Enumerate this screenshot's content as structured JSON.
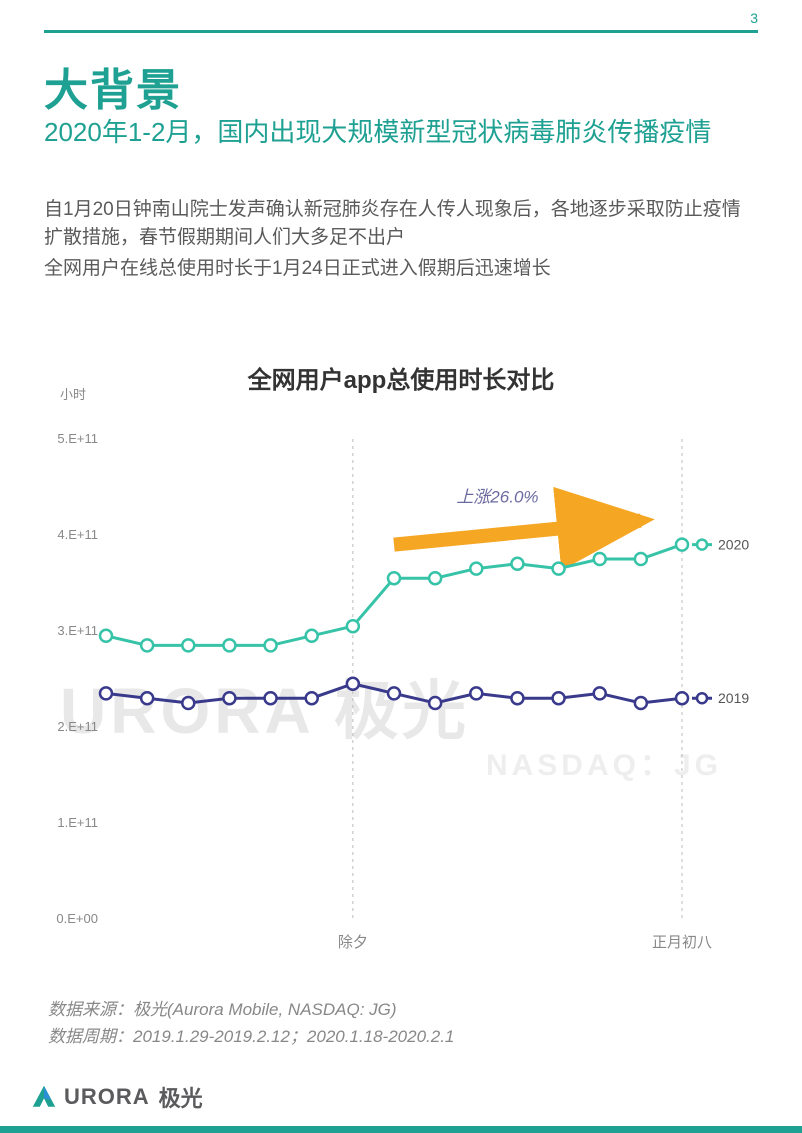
{
  "page_number": "3",
  "colors": {
    "accent": "#1ea192",
    "series_2020": "#37c3a8",
    "series_2019": "#3a3a8c",
    "arrow": "#f5a623",
    "text_body": "#5a5a5a",
    "text_muted": "#888888",
    "watermark": "#e8e8e8"
  },
  "header": {
    "title": "大背景",
    "subtitle": "2020年1-2月，国内出现大规模新型冠状病毒肺炎传播疫情",
    "body1": "自1月20日钟南山院士发声确认新冠肺炎存在人传人现象后，各地逐步采取防止疫情扩散措施，春节假期期间人们大多足不出户",
    "body2": "全网用户在线总使用时长于1月24日正式进入假期后迅速增长"
  },
  "chart": {
    "type": "line",
    "title": "全网用户app总使用时长对比",
    "y_unit": "小时",
    "ylim": [
      0,
      500000000000.0
    ],
    "ytick_step": 100000000000.0,
    "ytick_labels": [
      "0.E+00",
      "1.E+11",
      "2.E+11",
      "3.E+11",
      "4.E+11",
      "5.E+11"
    ],
    "n_points": 15,
    "x_annotations": [
      {
        "index": 6,
        "label": "除夕"
      },
      {
        "index": 14,
        "label": "正月初八"
      }
    ],
    "series": [
      {
        "name": "2020",
        "color": "#37c3a8",
        "line_width": 3,
        "marker": "circle-open",
        "marker_size": 6,
        "values": [
          295000000000.0,
          285000000000.0,
          285000000000.0,
          285000000000.0,
          285000000000.0,
          295000000000.0,
          305000000000.0,
          355000000000.0,
          355000000000.0,
          365000000000.0,
          370000000000.0,
          365000000000.0,
          375000000000.0,
          375000000000.0,
          390000000000.0
        ]
      },
      {
        "name": "2019",
        "color": "#3a3a8c",
        "line_width": 3,
        "marker": "circle-open",
        "marker_size": 6,
        "values": [
          235000000000.0,
          230000000000.0,
          225000000000.0,
          230000000000.0,
          230000000000.0,
          230000000000.0,
          245000000000.0,
          235000000000.0,
          225000000000.0,
          235000000000.0,
          230000000000.0,
          230000000000.0,
          235000000000.0,
          225000000000.0,
          230000000000.0
        ]
      }
    ],
    "annotation_arrow": {
      "label": "上涨26.0%",
      "color": "#f5a623",
      "from_index": 7,
      "to_index": 13
    },
    "background_color": "#ffffff",
    "grid": false
  },
  "watermark": {
    "main": "URORA 极光",
    "sub": "NASDAQ：JG"
  },
  "source": {
    "line1": "数据来源：极光(Aurora Mobile, NASDAQ: JG)",
    "line2": "数据周期：2019.1.29-2019.2.12；2020.1.18-2020.2.1"
  },
  "footer_logo": {
    "brand": "URORA",
    "cn": "极光"
  }
}
